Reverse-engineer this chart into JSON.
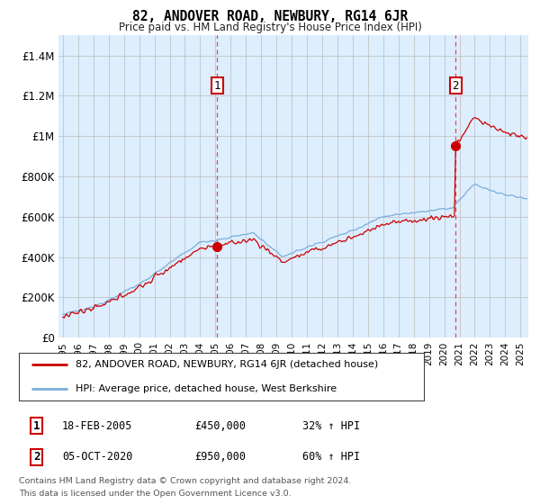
{
  "title": "82, ANDOVER ROAD, NEWBURY, RG14 6JR",
  "subtitle": "Price paid vs. HM Land Registry's House Price Index (HPI)",
  "legend_line1": "82, ANDOVER ROAD, NEWBURY, RG14 6JR (detached house)",
  "legend_line2": "HPI: Average price, detached house, West Berkshire",
  "sale1_price": 450000,
  "sale1_year": 2005.12,
  "sale2_price": 950000,
  "sale2_year": 2020.75,
  "footnote1": "Contains HM Land Registry data © Crown copyright and database right 2024.",
  "footnote2": "This data is licensed under the Open Government Licence v3.0.",
  "table1_col1": "1",
  "table1_col2": "18-FEB-2005",
  "table1_col3": "£450,000",
  "table1_col4": "32% ↑ HPI",
  "table2_col1": "2",
  "table2_col2": "05-OCT-2020",
  "table2_col3": "£950,000",
  "table2_col4": "60% ↑ HPI",
  "red_color": "#cc0000",
  "blue_color": "#7aadda",
  "blue_fill": "#ddeeff",
  "vline_color": "#ee4444",
  "grid_color": "#bbbbbb",
  "ylim": [
    0,
    1500000
  ],
  "xlim_start": 1994.7,
  "xlim_end": 2025.5,
  "yticks": [
    0,
    200000,
    400000,
    600000,
    800000,
    1000000,
    1200000,
    1400000
  ],
  "ytick_labels": [
    "£0",
    "£200K",
    "£400K",
    "£600K",
    "£800K",
    "£1M",
    "£1.2M",
    "£1.4M"
  ],
  "xticks": [
    1995,
    1996,
    1997,
    1998,
    1999,
    2000,
    2001,
    2002,
    2003,
    2004,
    2005,
    2006,
    2007,
    2008,
    2009,
    2010,
    2011,
    2012,
    2013,
    2014,
    2015,
    2016,
    2017,
    2018,
    2019,
    2020,
    2021,
    2022,
    2023,
    2024,
    2025
  ]
}
